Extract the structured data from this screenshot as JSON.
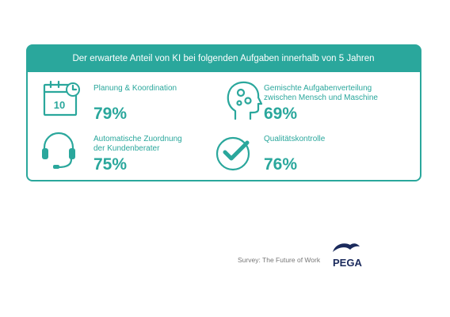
{
  "header": {
    "title": "Der erwartete Anteil von KI bei folgenden Aufgaben innerhalb von 5 Jahren"
  },
  "items": [
    {
      "label_lines": [
        "Planung & Koordination"
      ],
      "value": "79%",
      "icon_text": "10"
    },
    {
      "label_lines": [
        "Gemischte Aufgabenverteilung",
        "zwischen Mensch und Maschine"
      ],
      "value": "69%"
    },
    {
      "label_lines": [
        "Automatische Zuordnung",
        "der Kundenberater"
      ],
      "value": "75%"
    },
    {
      "label_lines": [
        "Qualitätskontrolle"
      ],
      "value": "76%"
    }
  ],
  "footer": {
    "source": "Survey: The Future of Work",
    "logo": "PEGA"
  }
}
